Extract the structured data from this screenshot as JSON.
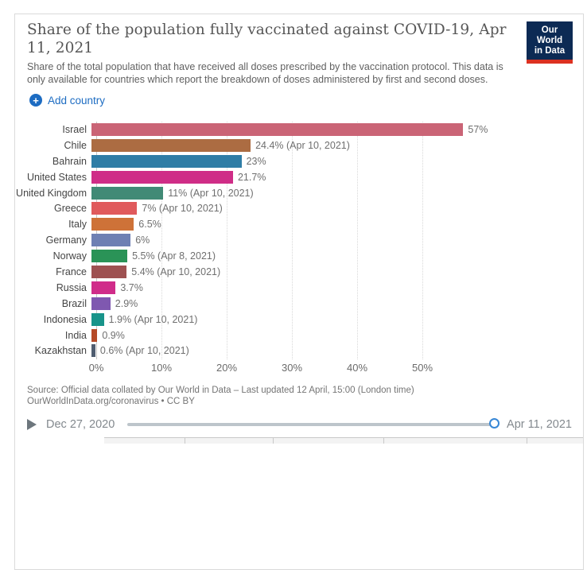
{
  "header": {
    "title": "Share of the population fully vaccinated against COVID-19, Apr 11, 2021",
    "subtitle": "Share of the total population that have received all doses prescribed by the vaccination protocol. This data is only available for countries which report the breakdown of doses administered by first and second doses.",
    "logo": {
      "line1": "Our World",
      "line2": "in Data",
      "bg_color": "#0c2a54",
      "accent_color": "#dc3121"
    }
  },
  "controls": {
    "add_country_label": "Add country",
    "accent_color": "#1d6cc2"
  },
  "chart_data": {
    "type": "bar",
    "orientation": "horizontal",
    "unit": "%",
    "xlim": [
      0,
      57
    ],
    "x_ticks": [
      "0%",
      "10%",
      "20%",
      "30%",
      "40%",
      "50%"
    ],
    "grid": true,
    "bars": [
      {
        "label": "Israel",
        "value": 57,
        "value_label": "57%",
        "color": "#ca6476"
      },
      {
        "label": "Chile",
        "value": 24.4,
        "value_label": "24.4% (Apr 10, 2021)",
        "color": "#ac6c42"
      },
      {
        "label": "Bahrain",
        "value": 23,
        "value_label": "23%",
        "color": "#2f7da6"
      },
      {
        "label": "United States",
        "value": 21.7,
        "value_label": "21.7%",
        "color": "#cf2d87"
      },
      {
        "label": "United Kingdom",
        "value": 11,
        "value_label": "11% (Apr 10, 2021)",
        "color": "#418a76"
      },
      {
        "label": "Greece",
        "value": 7,
        "value_label": "7% (Apr 10, 2021)",
        "color": "#e05a5c"
      },
      {
        "label": "Italy",
        "value": 6.5,
        "value_label": "6.5%",
        "color": "#ce7238"
      },
      {
        "label": "Germany",
        "value": 6,
        "value_label": "6%",
        "color": "#6e80b3"
      },
      {
        "label": "Norway",
        "value": 5.5,
        "value_label": "5.5% (Apr 8, 2021)",
        "color": "#2a9357"
      },
      {
        "label": "France",
        "value": 5.4,
        "value_label": "5.4% (Apr 10, 2021)",
        "color": "#9e5151"
      },
      {
        "label": "Russia",
        "value": 3.7,
        "value_label": "3.7%",
        "color": "#d02c8a"
      },
      {
        "label": "Brazil",
        "value": 2.9,
        "value_label": "2.9%",
        "color": "#7f58b0"
      },
      {
        "label": "Indonesia",
        "value": 1.9,
        "value_label": "1.9% (Apr 10, 2021)",
        "color": "#18948a"
      },
      {
        "label": "India",
        "value": 0.9,
        "value_label": "0.9%",
        "color": "#b54a27"
      },
      {
        "label": "Kazakhstan",
        "value": 0.6,
        "value_label": "0.6% (Apr 10, 2021)",
        "color": "#4f5d70"
      }
    ]
  },
  "footer": {
    "source_line1": "Source: Official data collated by Our World in Data – Last updated 12 April, 15:00 (London time)",
    "source_line2": "OurWorldInData.org/coronavirus • CC BY"
  },
  "timeline": {
    "start": "Dec 27, 2020",
    "end": "Apr 11, 2021",
    "handle_color": "#3787d6"
  }
}
